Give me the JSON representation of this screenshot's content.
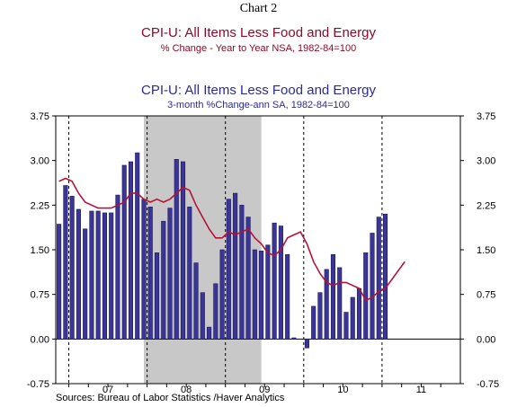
{
  "header": {
    "chart_number": "Chart 2",
    "series1_title": "CPI-U: All Items Less Food and Energy",
    "series1_subtitle": "% Change - Year to Year    NSA, 1982-84=100",
    "series2_title": "CPI-U: All Items Less Food and Energy",
    "series2_subtitle": "3-month %Change-ann     SA, 1982-84=100"
  },
  "source": "Sources:  Bureau of Labor Statistics /Haver Analytics",
  "colors": {
    "bar_fill": "#3a3596",
    "bar_edge": "#1c1a5e",
    "line": "#b5123a",
    "recession_shade": "#c8c8c8",
    "title1": "#8b0a2a",
    "title2": "#2e2b8f"
  },
  "chart_data": {
    "type": "bar",
    "ylim": [
      -0.75,
      3.75
    ],
    "yticks": [
      "3.75",
      "3.00",
      "2.25",
      "1.50",
      "0.75",
      "0.00",
      "-0.75"
    ],
    "ytick_values": [
      3.75,
      3.0,
      2.25,
      1.5,
      0.75,
      0.0,
      -0.75
    ],
    "year_labels": [
      "07",
      "08",
      "09",
      "10",
      "11"
    ],
    "recession": {
      "start": "2007-12",
      "end": "2009-06"
    },
    "grid": "dashed vertical lines at year boundaries",
    "months": [
      "2006-11",
      "2006-12",
      "2007-01",
      "2007-02",
      "2007-03",
      "2007-04",
      "2007-05",
      "2007-06",
      "2007-07",
      "2007-08",
      "2007-09",
      "2007-10",
      "2007-11",
      "2007-12",
      "2008-01",
      "2008-02",
      "2008-03",
      "2008-04",
      "2008-05",
      "2008-06",
      "2008-07",
      "2008-08",
      "2008-09",
      "2008-10",
      "2008-11",
      "2008-12",
      "2009-01",
      "2009-02",
      "2009-03",
      "2009-04",
      "2009-05",
      "2009-06",
      "2009-07",
      "2009-08",
      "2009-09",
      "2009-10",
      "2009-11",
      "2009-12",
      "2010-01",
      "2010-02",
      "2010-03",
      "2010-04",
      "2010-05",
      "2010-06",
      "2010-07",
      "2010-08",
      "2010-09",
      "2010-10",
      "2010-11",
      "2010-12",
      "2011-01",
      "2011-02",
      "2011-03",
      "2011-04",
      "2011-05",
      "2011-06",
      "2011-07",
      "2011-08",
      "2011-09",
      "2011-10",
      "2011-11",
      "2011-12"
    ],
    "series": [
      {
        "kind": "bar",
        "values": [
          1.93,
          2.58,
          2.4,
          2.18,
          1.85,
          2.15,
          2.15,
          2.12,
          2.12,
          2.42,
          2.92,
          2.98,
          3.13,
          2.35,
          2.22,
          1.45,
          1.98,
          2.2,
          3.02,
          2.98,
          2.22,
          1.28,
          0.78,
          0.2,
          0.93,
          1.5,
          2.35,
          2.45,
          2.25,
          2.05,
          1.5,
          1.48,
          1.58,
          1.95,
          1.9,
          1.42,
          0.02,
          null,
          -0.15,
          0.55,
          0.78,
          1.17,
          1.42,
          1.2,
          0.45,
          0.7,
          0.85,
          1.45,
          1.78,
          2.05,
          2.1,
          null,
          null,
          null,
          null,
          null,
          null,
          null,
          null,
          null,
          null,
          null
        ]
      },
      {
        "kind": "line",
        "values": [
          2.65,
          2.7,
          2.65,
          2.45,
          2.3,
          2.25,
          2.2,
          2.2,
          2.2,
          2.25,
          2.3,
          2.45,
          2.45,
          2.35,
          2.3,
          2.35,
          2.3,
          2.35,
          2.45,
          2.55,
          2.5,
          2.25,
          2.05,
          1.85,
          1.7,
          1.7,
          1.8,
          1.75,
          1.8,
          1.85,
          1.7,
          1.6,
          1.45,
          1.4,
          1.5,
          1.7,
          1.75,
          1.8,
          1.6,
          1.3,
          1.1,
          0.95,
          0.9,
          0.95,
          0.95,
          0.9,
          0.85,
          0.65,
          0.7,
          0.8,
          0.85,
          1.0,
          1.15,
          1.3,
          null,
          null,
          null,
          null,
          null,
          null,
          null,
          null
        ]
      }
    ]
  }
}
